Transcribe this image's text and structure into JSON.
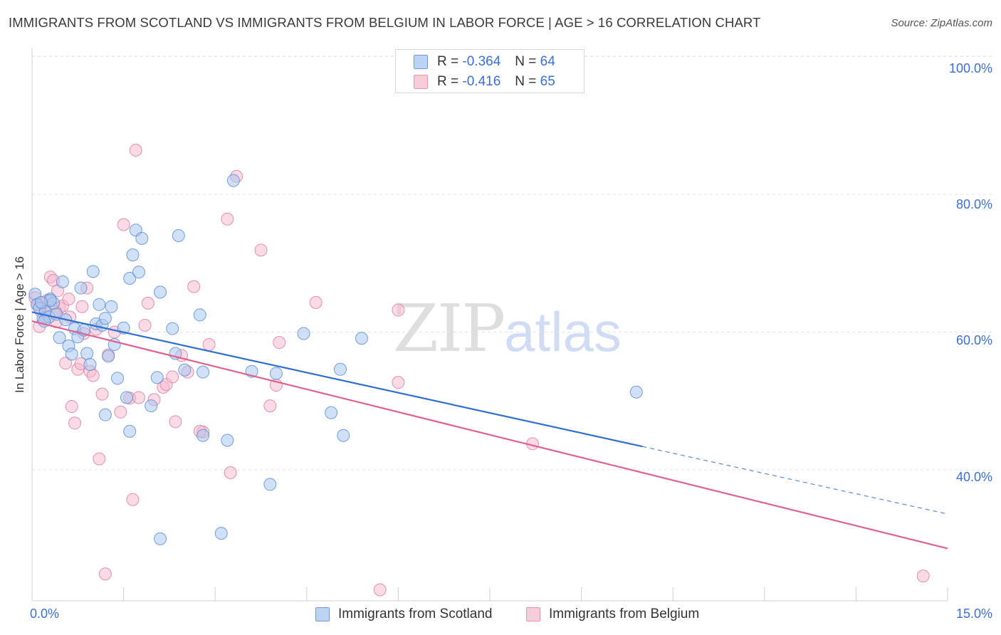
{
  "header": {
    "title": "IMMIGRANTS FROM SCOTLAND VS IMMIGRANTS FROM BELGIUM IN LABOR FORCE | AGE > 16 CORRELATION CHART",
    "source": "Source: ZipAtlas.com"
  },
  "watermark": {
    "zip": "ZIP",
    "atlas": "atlas"
  },
  "legend": {
    "rows": [
      {
        "r_label": "R =",
        "r_value": "-0.364",
        "n_label": "N =",
        "n_value": "64"
      },
      {
        "r_label": "R =",
        "r_value": "-0.416",
        "n_label": "N =",
        "n_value": "65"
      }
    ]
  },
  "chart_data": {
    "type": "scatter",
    "title": "IMMIGRANTS FROM SCOTLAND VS IMMIGRANTS FROM BELGIUM IN LABOR FORCE | AGE > 16 CORRELATION CHART",
    "xlabel": "",
    "ylabel": "In Labor Force | Age > 16",
    "xlim": [
      0,
      15
    ],
    "ylim": [
      21,
      102
    ],
    "x_tick_labels": [
      "0.0%",
      "15.0%"
    ],
    "y_ticks": [
      {
        "value": 40,
        "label": "40.0%"
      },
      {
        "value": 60,
        "label": "60.0%"
      },
      {
        "value": 80,
        "label": "80.0%"
      },
      {
        "value": 100,
        "label": "100.0%"
      }
    ],
    "grid": "horizontal dashed",
    "legend_position": "top-center",
    "colors": {
      "scotland_fill": "#a9c6ef",
      "scotland_stroke": "#5b8fd6",
      "scotland_line": "#2f6fd0",
      "belgium_fill": "#f6bccd",
      "belgium_stroke": "#e07f9f",
      "belgium_line": "#e0608e",
      "tick_text": "#3b6fd6",
      "grid": "#e2e2e2"
    },
    "series": [
      {
        "name": "Immigrants from Scotland",
        "r": -0.364,
        "n": 64,
        "trend": {
          "x0": 0.0,
          "y0": 62.9,
          "x1": 10.0,
          "y1": 43.4,
          "dash_to_x": 15.0,
          "dash_to_y": 33.6
        },
        "points": [
          [
            0.05,
            65.5
          ],
          [
            0.08,
            64.0
          ],
          [
            0.12,
            63.5
          ],
          [
            0.18,
            62.0
          ],
          [
            0.22,
            63.0
          ],
          [
            0.28,
            62.2
          ],
          [
            0.3,
            64.8
          ],
          [
            0.35,
            64.2
          ],
          [
            0.4,
            62.6
          ],
          [
            0.45,
            59.2
          ],
          [
            0.55,
            61.8
          ],
          [
            0.6,
            58.0
          ],
          [
            0.65,
            56.8
          ],
          [
            0.7,
            60.5
          ],
          [
            0.75,
            59.3
          ],
          [
            0.8,
            66.4
          ],
          [
            0.85,
            60.3
          ],
          [
            0.9,
            56.9
          ],
          [
            0.95,
            55.3
          ],
          [
            1.0,
            68.8
          ],
          [
            1.05,
            61.2
          ],
          [
            1.1,
            64.0
          ],
          [
            1.15,
            61.0
          ],
          [
            1.2,
            62.0
          ],
          [
            1.25,
            56.5
          ],
          [
            1.3,
            63.7
          ],
          [
            1.4,
            53.3
          ],
          [
            1.5,
            60.6
          ],
          [
            1.55,
            50.5
          ],
          [
            1.6,
            67.8
          ],
          [
            1.65,
            71.2
          ],
          [
            1.7,
            74.8
          ],
          [
            1.75,
            68.7
          ],
          [
            1.8,
            73.6
          ],
          [
            1.95,
            49.3
          ],
          [
            2.05,
            53.4
          ],
          [
            2.1,
            65.8
          ],
          [
            2.3,
            60.5
          ],
          [
            2.35,
            56.9
          ],
          [
            2.5,
            54.5
          ],
          [
            2.75,
            62.5
          ],
          [
            2.8,
            54.2
          ],
          [
            3.2,
            44.3
          ],
          [
            3.6,
            54.3
          ],
          [
            3.9,
            37.9
          ],
          [
            4.0,
            54.0
          ],
          [
            4.45,
            59.8
          ],
          [
            4.9,
            48.3
          ],
          [
            5.05,
            54.6
          ],
          [
            5.4,
            59.1
          ],
          [
            5.1,
            45.0
          ],
          [
            3.3,
            82.0
          ],
          [
            2.4,
            74.0
          ],
          [
            1.2,
            48.0
          ],
          [
            2.1,
            30.0
          ],
          [
            3.1,
            30.8
          ],
          [
            2.8,
            45.0
          ],
          [
            1.6,
            45.6
          ],
          [
            0.5,
            67.3
          ],
          [
            0.3,
            64.6
          ],
          [
            0.2,
            61.6
          ],
          [
            0.15,
            64.3
          ],
          [
            9.9,
            51.3
          ],
          [
            1.35,
            58.2
          ]
        ]
      },
      {
        "name": "Immigrants from Belgium",
        "r": -0.416,
        "n": 65,
        "trend": {
          "x0": 0.0,
          "y0": 61.6,
          "x1": 15.0,
          "y1": 28.6
        },
        "points": [
          [
            0.05,
            65.0
          ],
          [
            0.1,
            64.0
          ],
          [
            0.15,
            63.0
          ],
          [
            0.2,
            63.5
          ],
          [
            0.25,
            64.6
          ],
          [
            0.3,
            68.0
          ],
          [
            0.35,
            67.5
          ],
          [
            0.4,
            61.5
          ],
          [
            0.45,
            63.5
          ],
          [
            0.5,
            63.8
          ],
          [
            0.55,
            55.5
          ],
          [
            0.6,
            64.8
          ],
          [
            0.65,
            49.2
          ],
          [
            0.7,
            46.8
          ],
          [
            0.75,
            54.6
          ],
          [
            0.8,
            55.4
          ],
          [
            0.85,
            59.8
          ],
          [
            0.9,
            66.4
          ],
          [
            0.95,
            54.3
          ],
          [
            1.0,
            53.7
          ],
          [
            1.05,
            60.4
          ],
          [
            1.1,
            41.6
          ],
          [
            1.15,
            51.0
          ],
          [
            1.2,
            24.9
          ],
          [
            1.35,
            60.0
          ],
          [
            1.5,
            75.6
          ],
          [
            1.6,
            50.4
          ],
          [
            1.65,
            35.7
          ],
          [
            1.7,
            86.4
          ],
          [
            1.85,
            61.0
          ],
          [
            1.9,
            64.2
          ],
          [
            2.0,
            50.2
          ],
          [
            2.15,
            52.0
          ],
          [
            2.2,
            52.4
          ],
          [
            2.3,
            53.5
          ],
          [
            2.35,
            47.0
          ],
          [
            2.45,
            56.6
          ],
          [
            2.55,
            54.2
          ],
          [
            2.65,
            66.6
          ],
          [
            2.8,
            45.5
          ],
          [
            2.9,
            58.2
          ],
          [
            3.2,
            76.4
          ],
          [
            3.35,
            82.6
          ],
          [
            3.25,
            39.6
          ],
          [
            3.75,
            71.9
          ],
          [
            3.9,
            49.3
          ],
          [
            4.0,
            52.3
          ],
          [
            4.05,
            58.5
          ],
          [
            4.65,
            64.3
          ],
          [
            6.0,
            52.7
          ],
          [
            5.7,
            22.6
          ],
          [
            6.0,
            63.2
          ],
          [
            8.2,
            43.8
          ],
          [
            14.6,
            24.6
          ],
          [
            0.12,
            60.8
          ],
          [
            0.22,
            62.2
          ],
          [
            1.45,
            48.4
          ],
          [
            0.82,
            63.7
          ],
          [
            0.38,
            63.0
          ],
          [
            0.18,
            64.2
          ],
          [
            0.62,
            62.2
          ],
          [
            1.25,
            56.7
          ],
          [
            2.75,
            45.6
          ],
          [
            1.75,
            50.5
          ],
          [
            0.42,
            66.0
          ]
        ]
      }
    ]
  },
  "axes": {
    "x_left_label": "0.0%",
    "x_right_label": "15.0%",
    "y_axis_title": "In Labor Force | Age > 16",
    "y_labels": [
      "100.0%",
      "80.0%",
      "60.0%",
      "40.0%"
    ]
  },
  "bottom_legend": {
    "scotland": "Immigrants from Scotland",
    "belgium": "Immigrants from Belgium"
  }
}
